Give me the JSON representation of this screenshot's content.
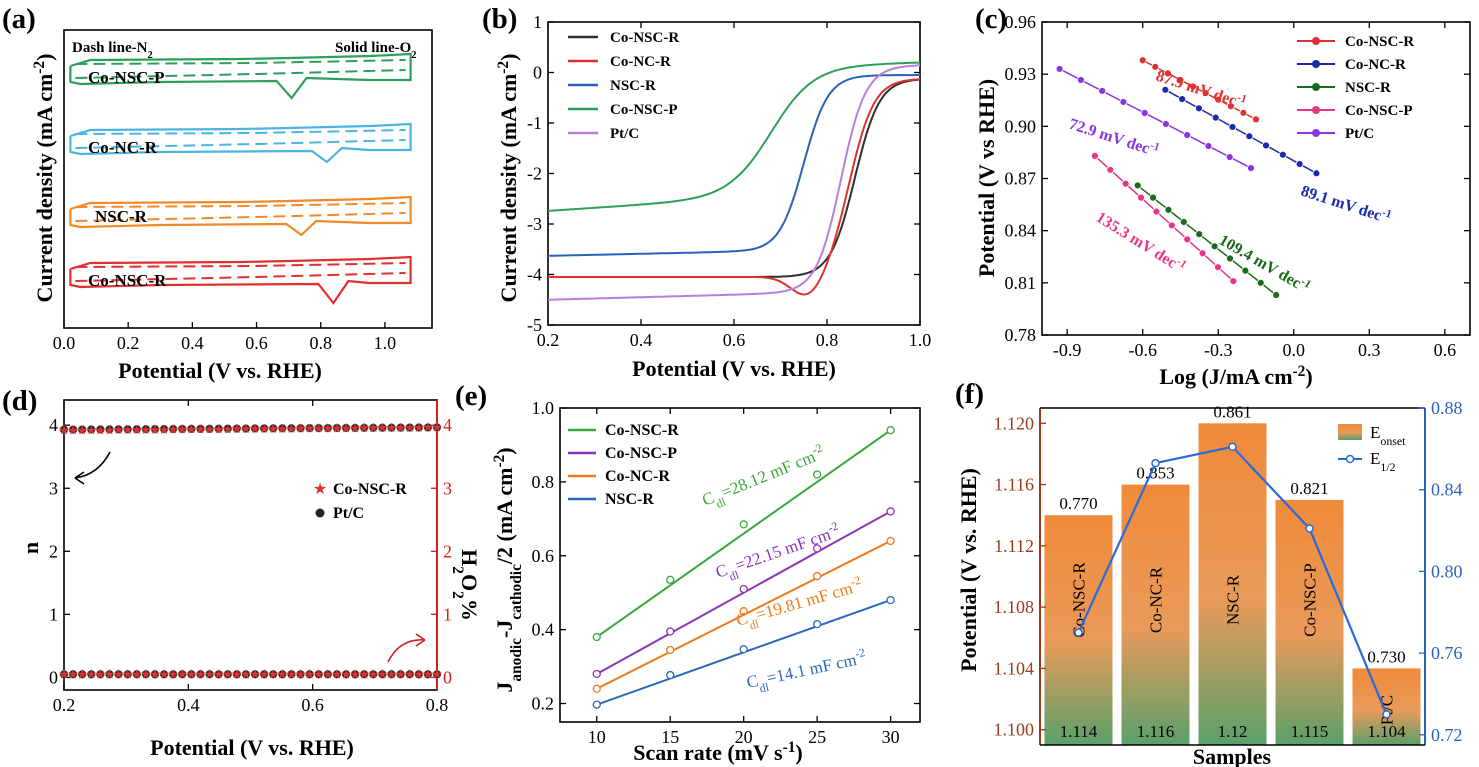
{
  "panels": {
    "a": {
      "letter": "(a)"
    },
    "b": {
      "letter": "(b)"
    },
    "c": {
      "letter": "(c)"
    },
    "d": {
      "letter": "(d)"
    },
    "e": {
      "letter": "(e)"
    },
    "f": {
      "letter": "(f)"
    }
  },
  "chart_data": [
    {
      "id": "a",
      "type": "line",
      "title": "",
      "xlabel": "Potential (V vs. RHE)",
      "ylabel": "Current density (mA cm",
      "ylabel_sup": "-2",
      "xlim": [
        0.0,
        1.1
      ],
      "xticks": [
        "0.0",
        "0.2",
        "0.4",
        "0.6",
        "0.8",
        "1.0"
      ],
      "annotations": {
        "dash": "Dash line-N",
        "dash_sub": "2",
        "solid": "Solid line-O",
        "solid_sub": "2"
      },
      "series": [
        {
          "name": "Co-NSC-P",
          "color": "#2ca05a",
          "peak_potential": 0.7
        },
        {
          "name": "Co-NC-R",
          "color": "#4cb4e0",
          "peak_potential": 0.81
        },
        {
          "name": "NSC-R",
          "color": "#f08a28",
          "peak_potential": 0.73
        },
        {
          "name": "Co-NSC-R",
          "color": "#e03030",
          "peak_potential": 0.83
        }
      ]
    },
    {
      "id": "b",
      "type": "line",
      "xlabel": "Potential (V vs. RHE)",
      "ylabel": "Current density (mA cm",
      "ylabel_sup": "-2",
      "xlim": [
        0.2,
        1.0
      ],
      "ylim": [
        -5,
        1
      ],
      "xticks": [
        "0.2",
        "0.4",
        "0.6",
        "0.8",
        "1.0"
      ],
      "yticks": [
        "1",
        "0",
        "-1",
        "-2",
        "-3",
        "-4",
        "-5"
      ],
      "series": [
        {
          "name": "Co-NSC-R",
          "color": "#303030",
          "plateau": -4.05,
          "E_half": 0.86,
          "limit": -0.12
        },
        {
          "name": "Co-NC-R",
          "color": "#e03030",
          "plateau": -4.05,
          "E_half": 0.85,
          "limit": -0.12
        },
        {
          "name": "NSC-R",
          "color": "#2a62b8",
          "plateau": -3.55,
          "E_half": 0.75,
          "limit": -0.05
        },
        {
          "name": "Co-NSC-P",
          "color": "#2ca05a",
          "plateau": -2.65,
          "E_half": 0.68,
          "limit": -0.05
        },
        {
          "name": "Pt/C",
          "color": "#b87ee0",
          "plateau": -4.5,
          "E_half": 0.83,
          "limit": -0.05
        }
      ]
    },
    {
      "id": "c",
      "type": "scatter",
      "xlabel": "Log (J/mA cm",
      "xlabel_sup": "-2",
      "xlabel_tail": ")",
      "ylabel": "Potential (V vs RHE)",
      "xlim": [
        -1.0,
        0.7
      ],
      "ylim": [
        0.78,
        0.96
      ],
      "xticks": [
        "-0.9",
        "-0.6",
        "-0.3",
        "0.0",
        "0.3",
        "0.6"
      ],
      "yticks": [
        "0.96",
        "0.93",
        "0.90",
        "0.87",
        "0.84",
        "0.81",
        "0.78"
      ],
      "series": [
        {
          "name": "Co-NSC-R",
          "color": "#e03030",
          "x": [
            -0.6,
            -0.15
          ],
          "y": [
            0.938,
            0.904
          ],
          "slope_label": "87.9 mV dec",
          "slope_sup": "-1"
        },
        {
          "name": "Co-NC-R",
          "color": "#1a2aa8",
          "x": [
            -0.51,
            0.09
          ],
          "y": [
            0.921,
            0.873
          ],
          "slope_label": "89.1 mV dec",
          "slope_sup": "-1"
        },
        {
          "name": "NSC-R",
          "color": "#1a6a1a",
          "x": [
            -0.62,
            -0.07
          ],
          "y": [
            0.866,
            0.803
          ],
          "slope_label": "109.4 mV dec",
          "slope_sup": "-1"
        },
        {
          "name": "Co-NSC-P",
          "color": "#e8358a",
          "x": [
            -0.79,
            -0.24
          ],
          "y": [
            0.883,
            0.811
          ],
          "slope_label": "135.3 mV dec",
          "slope_sup": "-1"
        },
        {
          "name": "Pt/C",
          "color": "#8a35e0",
          "x": [
            -0.93,
            -0.17
          ],
          "y": [
            0.933,
            0.876
          ],
          "slope_label": "72.9 mV dec",
          "slope_sup": "-1"
        }
      ]
    },
    {
      "id": "d",
      "type": "scatter",
      "xlabel": "Potential (V vs. RHE)",
      "ylabel": "n",
      "y2label": "H",
      "y2label_sub": "2",
      "y2label_tail": "O",
      "y2label_sub2": "2",
      "y2label_end": "%",
      "xlim": [
        0.2,
        0.8
      ],
      "ylim": [
        -0.2,
        4.4
      ],
      "xticks": [
        "0.2",
        "0.4",
        "0.6",
        "0.8"
      ],
      "yticks": [
        "0",
        "1",
        "2",
        "3",
        "4"
      ],
      "series": [
        {
          "name": "Co-NSC-R",
          "color": "#e03030",
          "marker": "star",
          "n": 3.93,
          "h2o2": 0.05
        },
        {
          "name": "Pt/C",
          "color": "#111111",
          "marker": "circle",
          "n": 3.93,
          "h2o2": 0.05
        }
      ]
    },
    {
      "id": "e",
      "type": "scatter",
      "xlabel": "Scan rate (mV s",
      "xlabel_sup": "-1",
      "xlabel_tail": ")",
      "ylabel": "J",
      "ylabel_sub": "anodic",
      "ylabel_mid": "-J",
      "ylabel_sub2": "cathodic",
      "ylabel_tail": "/2 (mA cm",
      "ylabel_sup": "-2",
      "ylabel_end": ")",
      "xlim": [
        7.5,
        32
      ],
      "ylim": [
        0.15,
        1.0
      ],
      "xticks": [
        "10",
        "15",
        "20",
        "25",
        "30"
      ],
      "yticks": [
        "1.0",
        "0.8",
        "0.6",
        "0.4",
        "0.2"
      ],
      "x": [
        10,
        15,
        20,
        25,
        30
      ],
      "series": [
        {
          "name": "Co-NSC-R",
          "color": "#3aa83a",
          "values": [
            0.38,
            0.535,
            0.685,
            0.82,
            0.94
          ],
          "cdl": "=28.12 mF cm",
          "cdl_sup": "-2"
        },
        {
          "name": "Co-NSC-P",
          "color": "#8a35b8",
          "values": [
            0.28,
            0.395,
            0.51,
            0.62,
            0.72
          ],
          "cdl": "=22.15 mF cm",
          "cdl_sup": "-2"
        },
        {
          "name": "Co-NC-R",
          "color": "#f07a1a",
          "values": [
            0.24,
            0.345,
            0.45,
            0.545,
            0.64
          ],
          "cdl": "=19.81 mF cm",
          "cdl_sup": "-2"
        },
        {
          "name": "NSC-R",
          "color": "#2a6ab8",
          "values": [
            0.197,
            0.277,
            0.347,
            0.415,
            0.48
          ],
          "cdl": "=14.1 mF cm",
          "cdl_sup": "-2"
        }
      ],
      "cdl_prefix": "C",
      "cdl_sub": "dl"
    },
    {
      "id": "f",
      "type": "bar",
      "xlabel": "Samples",
      "ylabel": "Potential (V vs. RHE)",
      "categories": [
        "Co-NSC-R",
        "Co-NC-R",
        "NSC-R",
        "Co-NSC-P",
        "Pt/C"
      ],
      "onset_values": [
        1.114,
        1.116,
        1.12,
        1.115,
        1.104
      ],
      "onset_labels": [
        "1.114",
        "1.116",
        "1.12",
        "1.115",
        "1.104"
      ],
      "half_values": [
        0.77,
        0.853,
        0.861,
        0.821,
        0.73
      ],
      "half_labels": [
        "0.770",
        "0.853",
        "0.861",
        "0.821",
        "0.730"
      ],
      "ylim": [
        1.099,
        1.121
      ],
      "yticks": [
        "1.120",
        "1.116",
        "1.112",
        "1.108",
        "1.104",
        "1.100"
      ],
      "y2lim": [
        0.715,
        0.88
      ],
      "y2ticks": [
        "0.88",
        "0.84",
        "0.80",
        "0.76",
        "0.72"
      ],
      "legend": {
        "onset": "E",
        "onset_sub": "onset",
        "half": "E",
        "half_sub": "1/2"
      },
      "colors": {
        "bar_top": "#f08a3a",
        "bar_bottom": "#5aa06a",
        "line": "#2a6ad8",
        "left_axis": "#9a3a1a",
        "right_axis": "#2a62b8"
      }
    }
  ]
}
